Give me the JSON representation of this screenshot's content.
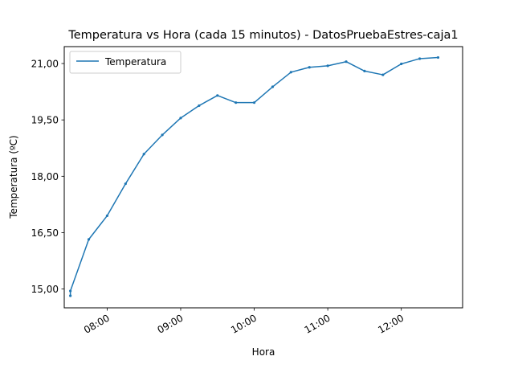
{
  "chart_data": {
    "type": "line",
    "title": "Temperatura vs Hora (cada 15 minutos) - DatosPruebaEstres-caja1",
    "xlabel": "Hora",
    "ylabel": "Temperatura (ºC)",
    "xlim": [
      "07:25",
      "12:50"
    ],
    "ylim": [
      14.5,
      21.45
    ],
    "x_ticks": [
      "08:00",
      "09:00",
      "10:00",
      "11:00",
      "12:00"
    ],
    "y_ticks": [
      "15,00",
      "16,50",
      "18,00",
      "19,50",
      "21,00"
    ],
    "y_tick_values": [
      15.0,
      16.5,
      18.0,
      19.5,
      21.0
    ],
    "grid": false,
    "legend_position": "upper-left",
    "series": [
      {
        "name": "Temperatura",
        "color": "#1f77b4",
        "x": [
          "07:30",
          "07:30",
          "07:45",
          "08:00",
          "08:15",
          "08:30",
          "08:45",
          "09:00",
          "09:15",
          "09:30",
          "09:45",
          "10:00",
          "10:15",
          "10:30",
          "10:45",
          "11:00",
          "11:15",
          "11:30",
          "11:45",
          "12:00",
          "12:15",
          "12:30"
        ],
        "values": [
          14.82,
          14.95,
          16.32,
          16.95,
          17.8,
          18.59,
          19.1,
          19.55,
          19.88,
          20.15,
          19.96,
          19.96,
          20.38,
          20.77,
          20.9,
          20.94,
          21.05,
          20.8,
          20.7,
          20.99,
          21.13,
          21.16
        ]
      }
    ]
  }
}
